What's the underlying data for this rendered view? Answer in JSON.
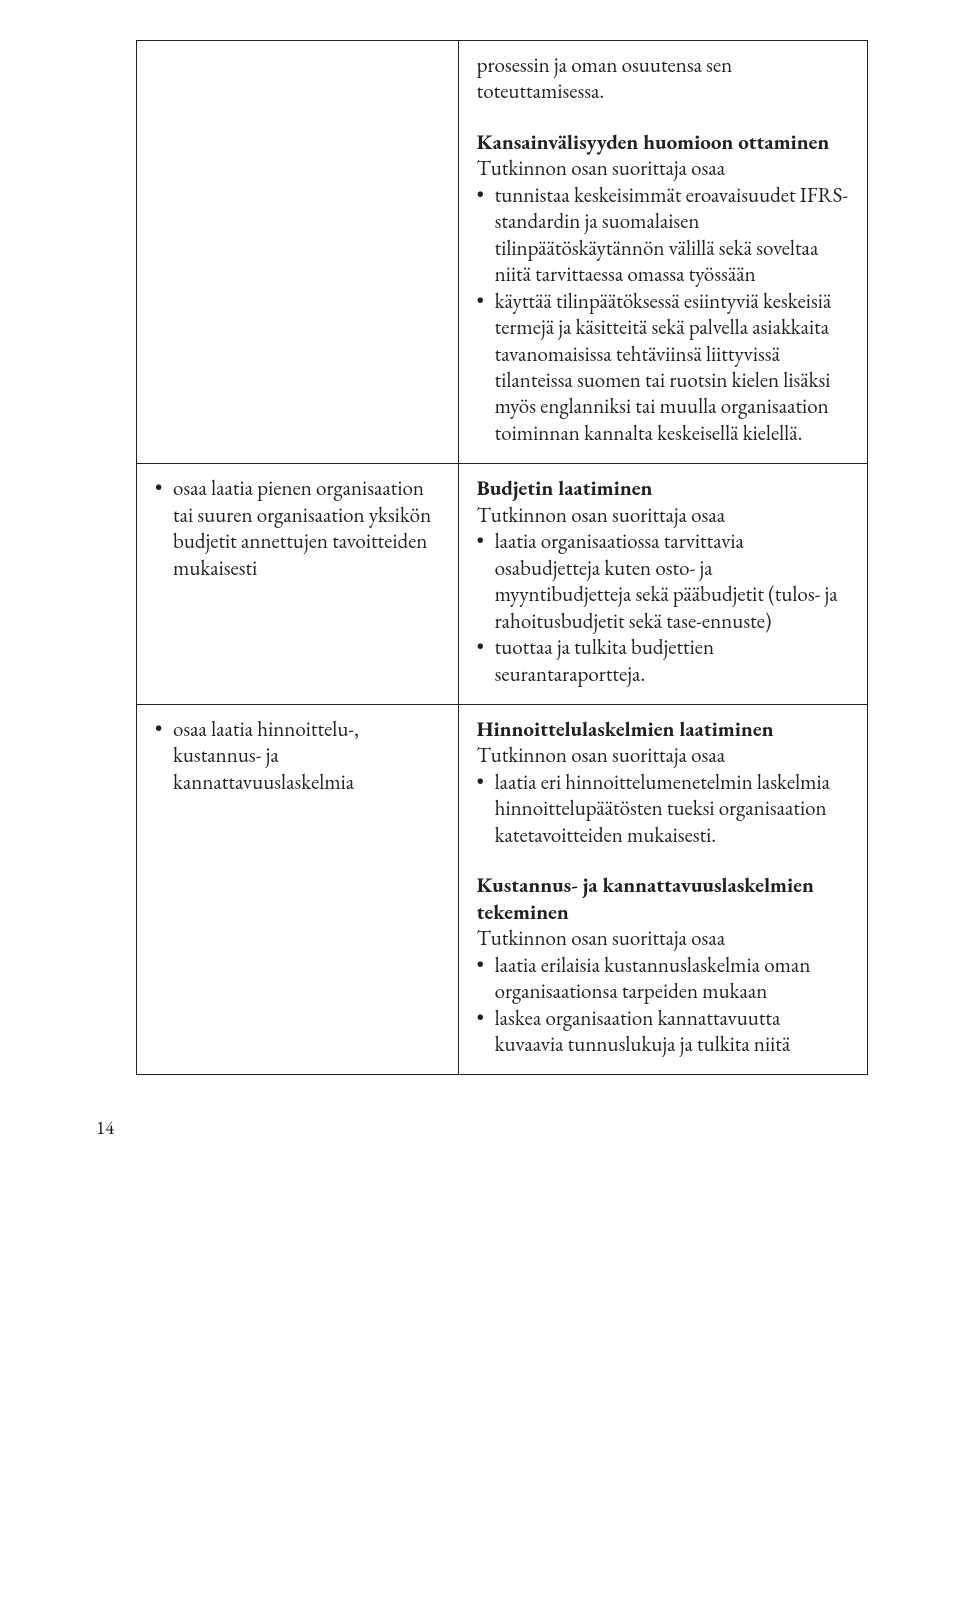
{
  "pageNumber": "14",
  "rows": [
    {
      "left": {
        "bullets": []
      },
      "right": {
        "blocks": [
          {
            "title": "",
            "lead": "prosessin ja oman osuutensa sen toteuttamisessa.",
            "bullets": []
          },
          {
            "title": "Kansainvälisyyden huomioon ottaminen",
            "lead": "Tutkinnon osan suorittaja osaa",
            "bullets": [
              "tunnistaa keskeisimmät eroavaisuudet IFRS-standardin ja suomalaisen tilinpäätöskäytännön välillä sekä soveltaa niitä tarvittaessa omassa työssään",
              "käyttää tilinpäätöksessä esiintyviä keskeisiä termejä ja käsitteitä sekä palvella asiakkaita tavanomaisissa tehtäviinsä liittyvissä tilanteissa suomen tai ruotsin kielen lisäksi myös englanniksi tai muulla organisaation toiminnan kannalta keskeisellä kielellä."
            ]
          }
        ]
      }
    },
    {
      "left": {
        "bullets": [
          "osaa laatia pienen organisaation tai suuren organisaation yksikön budjetit annettujen tavoitteiden mukaisesti"
        ]
      },
      "right": {
        "blocks": [
          {
            "title": "Budjetin laatiminen",
            "lead": "Tutkinnon osan suorittaja osaa",
            "bullets": [
              "laatia organisaatiossa tarvittavia osabudjetteja kuten osto- ja myyntibudjetteja sekä pääbudjetit (tulos- ja rahoitusbudjetit sekä tase-ennuste)",
              "tuottaa ja tulkita budjettien seurantaraportteja."
            ]
          }
        ]
      }
    },
    {
      "left": {
        "bullets": [
          "osaa laatia hinnoittelu-, kustannus- ja kannattavuuslaskelmia"
        ]
      },
      "right": {
        "blocks": [
          {
            "title": "Hinnoittelulaskelmien laatiminen",
            "lead": "Tutkinnon osan suorittaja osaa",
            "bullets": [
              "laatia eri hinnoittelumenetelmin laskelmia hinnoittelupäätösten tueksi organisaation katetavoitteiden mukaisesti."
            ]
          },
          {
            "title": "Kustannus- ja kannattavuus­laskelmien tekeminen",
            "lead": "Tutkinnon osan suorittaja osaa",
            "bullets": [
              "laatia erilaisia kustannuslaskelmia oman organisaationsa tarpeiden mukaan",
              "laskea organisaation kannattavuutta kuvaavia tunnuslukuja ja tulkita niitä"
            ]
          }
        ]
      }
    }
  ]
}
